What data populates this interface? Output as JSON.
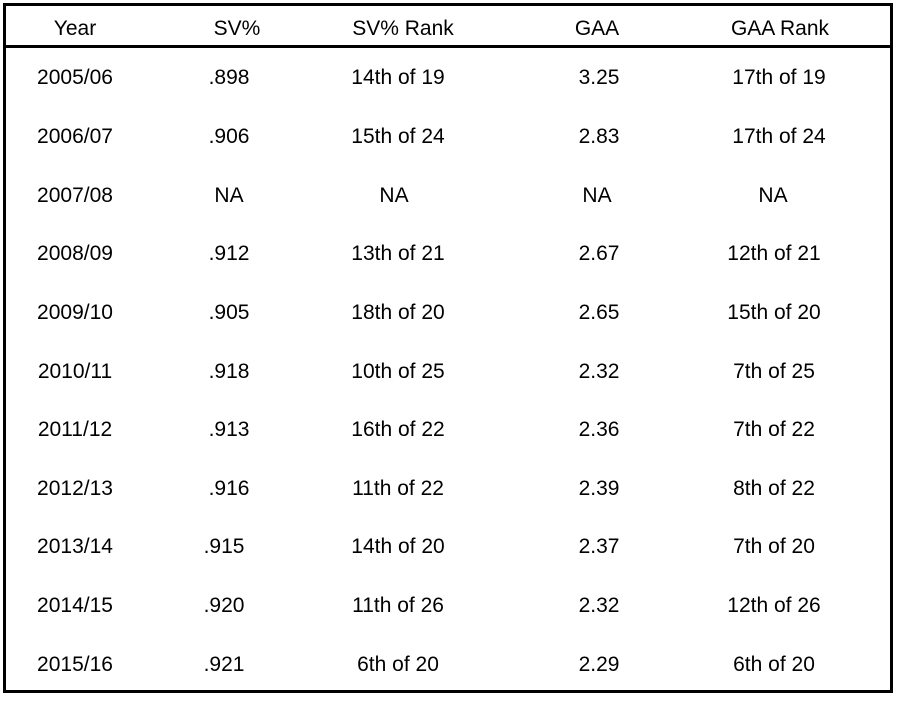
{
  "table": {
    "headers": [
      "Year",
      "SV%",
      "SV% Rank",
      "GAA",
      "GAA Rank"
    ],
    "rows": [
      [
        "2005/06",
        ".898",
        "14th of 19",
        "3.25",
        "17th of 19"
      ],
      [
        "2006/07",
        ".906",
        "15th of 24",
        "2.83",
        "17th of 24"
      ],
      [
        "2007/08",
        "NA",
        "NA",
        "NA",
        "NA"
      ],
      [
        "2008/09",
        ".912",
        "13th of 21",
        "2.67",
        "12th of 21"
      ],
      [
        "2009/10",
        ".905",
        "18th of 20",
        "2.65",
        "15th of 20"
      ],
      [
        "2010/11",
        ".918",
        "10th of 25",
        "2.32",
        "7th of 25"
      ],
      [
        "2011/12",
        ".913",
        "16th of 22",
        "2.36",
        "7th of 22"
      ],
      [
        "2012/13",
        ".916",
        "11th of 22",
        "2.39",
        "8th of 22"
      ],
      [
        "2013/14",
        ".915",
        "14th of 20",
        "2.37",
        "7th of 20"
      ],
      [
        "2014/15",
        ".920",
        "11th of 26",
        "2.32",
        "12th of 26"
      ],
      [
        "2015/16",
        ".921",
        "6th of 20",
        "2.29",
        "6th of 20"
      ]
    ]
  }
}
